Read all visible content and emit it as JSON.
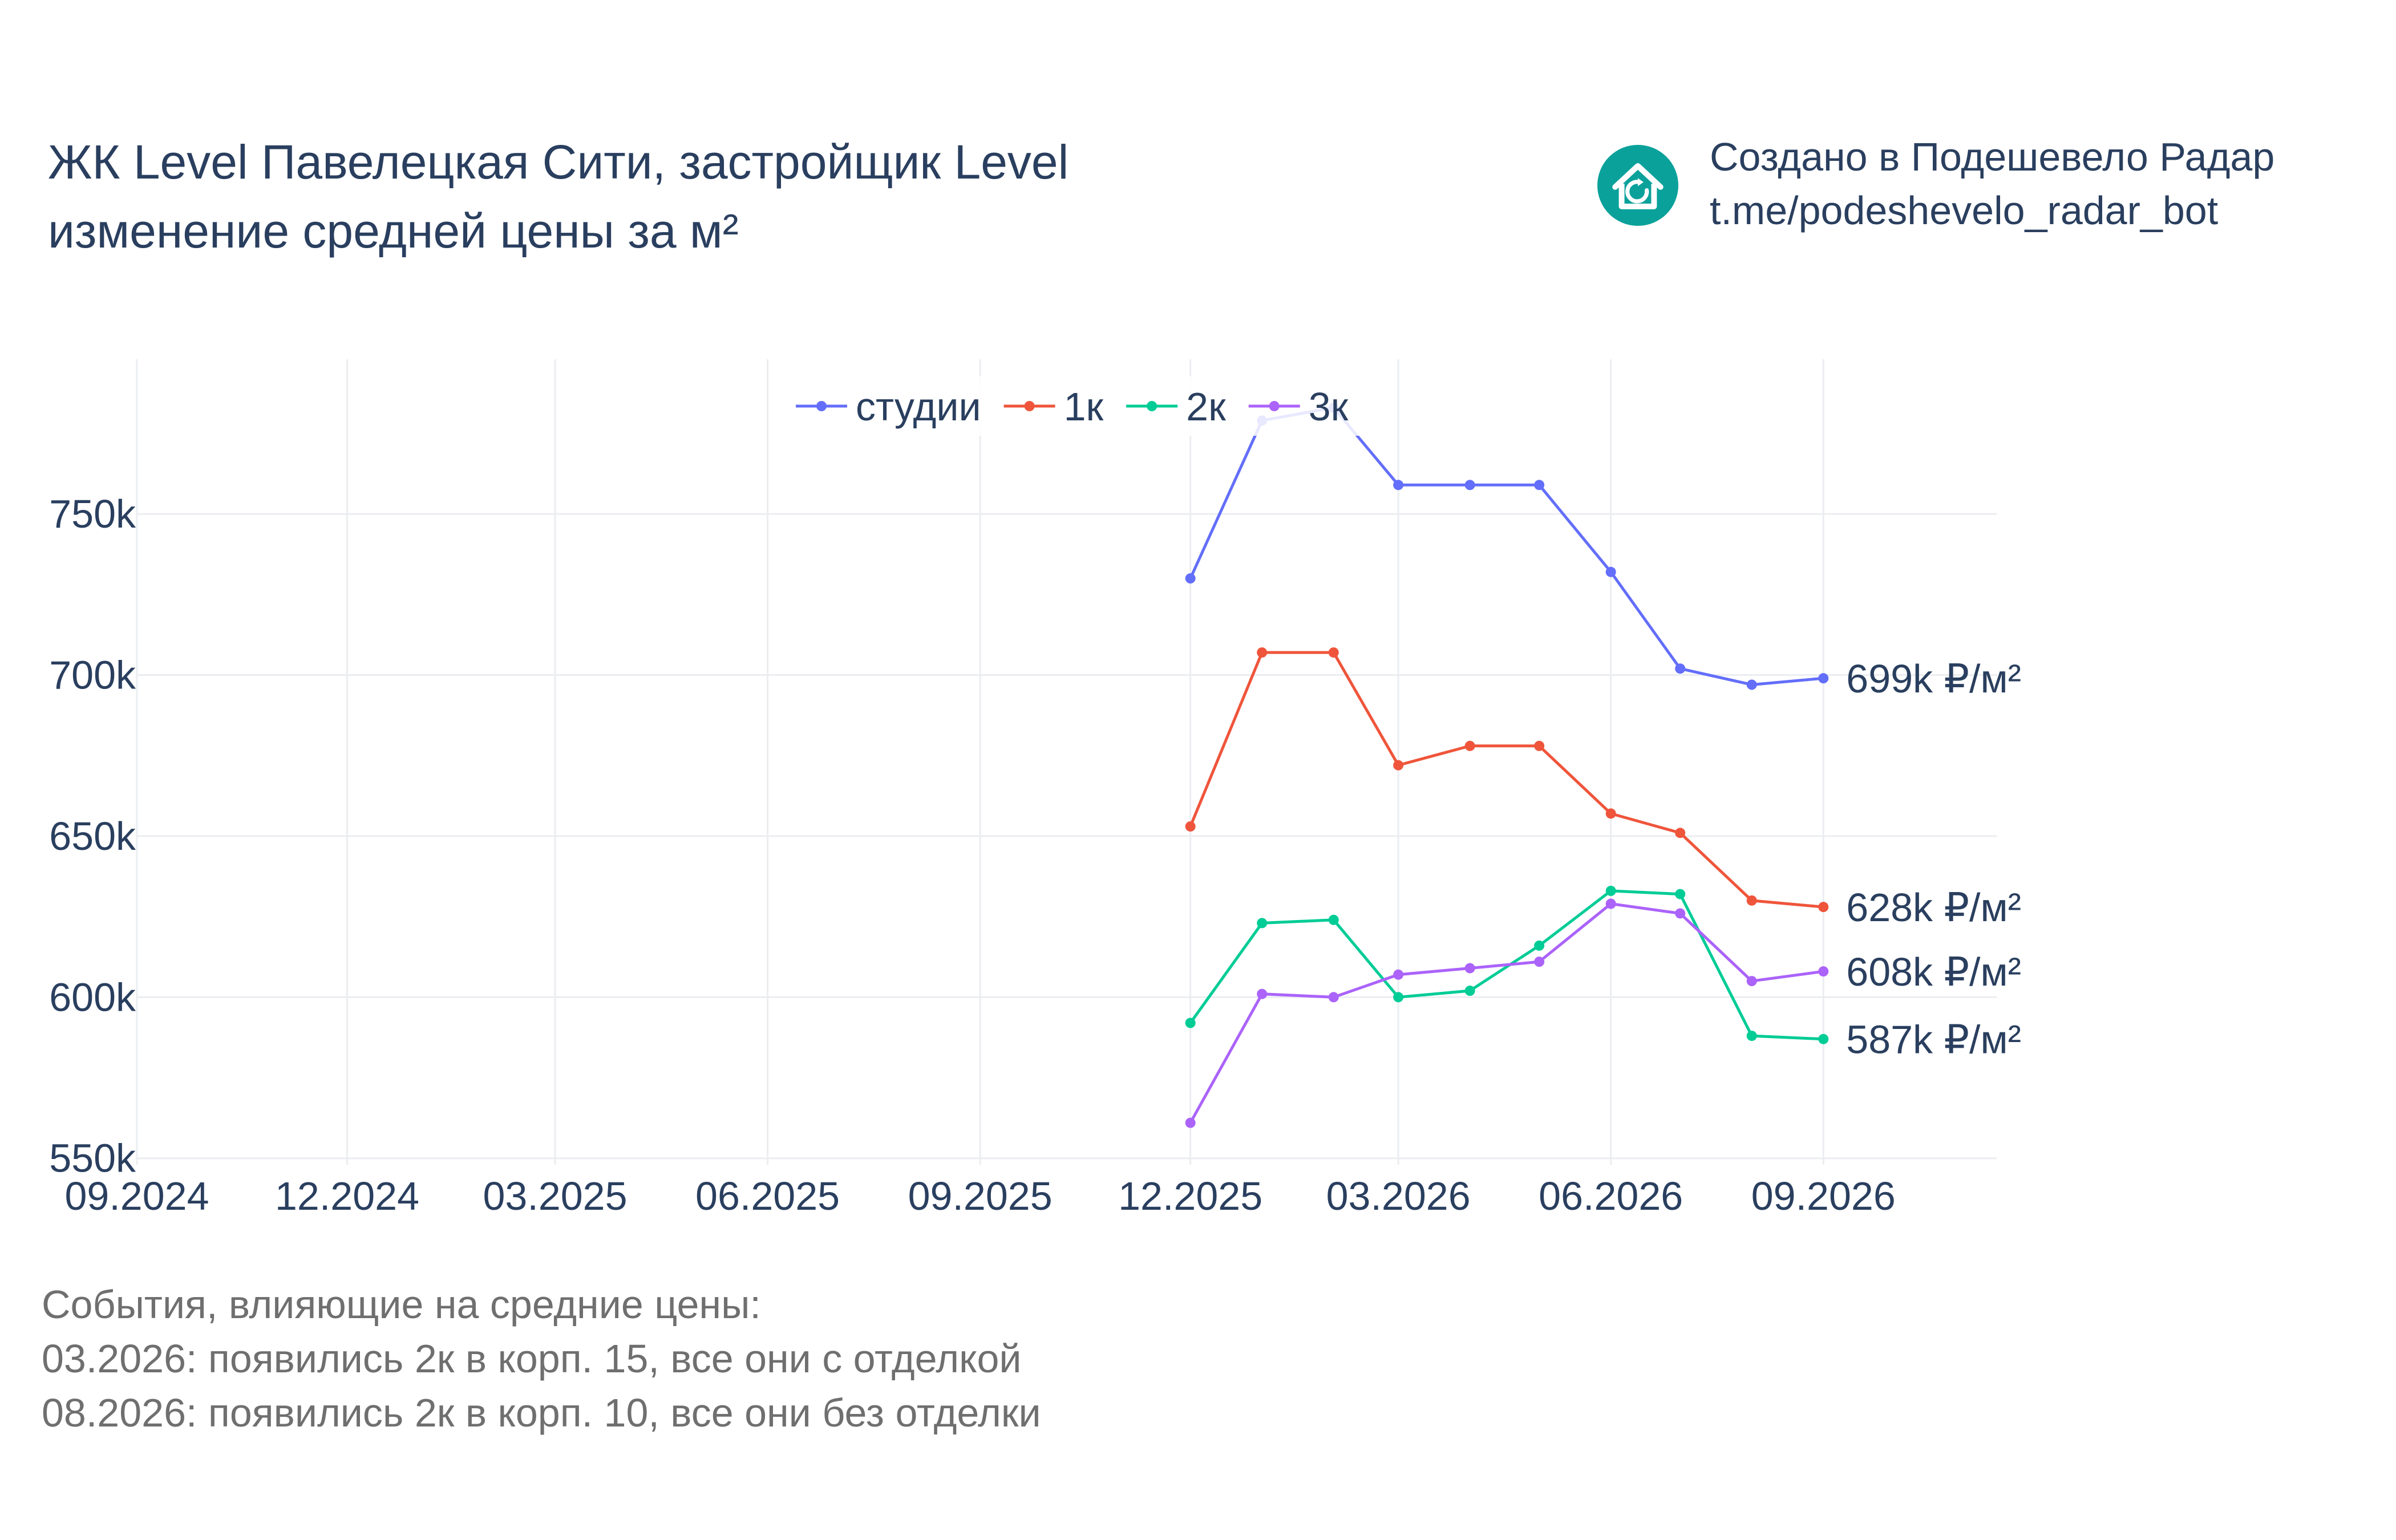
{
  "title": {
    "line1": "ЖК Level Павелецкая Сити, застройщик Level",
    "line2": "изменение средней цены за м²"
  },
  "brand": {
    "line1": "Создано в Подешевело Радар",
    "line2": "t.me/podeshevelo_radar_bot",
    "logo_icon": "house-refresh-icon",
    "logo_color": "#0aa19b"
  },
  "events": {
    "heading": "События, влияющие на средние цены:",
    "items": [
      "03.2026: появились 2к в корп. 15, все они с отделкой",
      "08.2026: появились 2к в корп. 10, все они без отделки"
    ]
  },
  "chart_data": {
    "type": "line",
    "title": "",
    "xlabel": "",
    "ylabel": "",
    "x_ticks": [
      "09.2024",
      "12.2024",
      "03.2025",
      "06.2025",
      "09.2025",
      "12.2025",
      "03.2026",
      "06.2026",
      "09.2026"
    ],
    "y_ticks": [
      "550k",
      "600k",
      "650k",
      "700k",
      "750k"
    ],
    "y_tick_values": [
      550000,
      600000,
      650000,
      700000,
      750000
    ],
    "ylim": [
      548000,
      798000
    ],
    "xlim": [
      "2024-09-01",
      "2026-11-15"
    ],
    "grid": true,
    "legend_position": "top-center",
    "x": [
      "2025-12-01",
      "2026-01-01",
      "2026-02-01",
      "2026-03-01",
      "2026-04-01",
      "2026-05-01",
      "2026-06-01",
      "2026-07-01",
      "2026-08-01",
      "2026-09-01"
    ],
    "series": [
      {
        "name": "студии",
        "color": "#636efa",
        "end_label": "699k ₽/м²",
        "values": [
          730000,
          779000,
          783000,
          759000,
          759000,
          759000,
          732000,
          702000,
          697000,
          699000
        ]
      },
      {
        "name": "1к",
        "color": "#ef553b",
        "end_label": "628k ₽/м²",
        "values": [
          653000,
          707000,
          707000,
          672000,
          678000,
          678000,
          657000,
          651000,
          630000,
          628000
        ]
      },
      {
        "name": "2к",
        "color": "#00cc96",
        "end_label": "587k ₽/м²",
        "values": [
          592000,
          623000,
          624000,
          600000,
          602000,
          616000,
          633000,
          632000,
          588000,
          587000
        ]
      },
      {
        "name": "3к",
        "color": "#ab63fa",
        "end_label": "608k ₽/м²",
        "values": [
          561000,
          601000,
          600000,
          607000,
          609000,
          611000,
          629000,
          626000,
          605000,
          608000
        ]
      }
    ]
  }
}
